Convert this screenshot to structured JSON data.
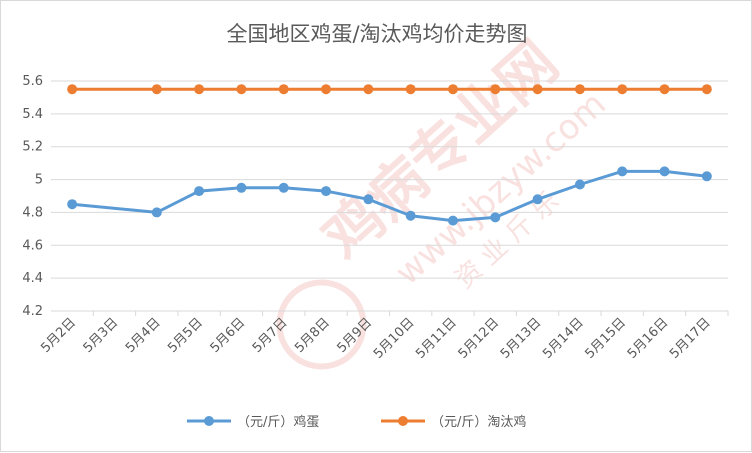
{
  "chart_data": {
    "type": "line",
    "title": "全国地区鸡蛋/淘汰鸡均价走势图",
    "categories": [
      "5月2日",
      "5月3日",
      "5月4日",
      "5月5日",
      "5月6日",
      "5月7日",
      "5月8日",
      "5月9日",
      "5月10日",
      "5月11日",
      "5月12日",
      "5月13日",
      "5月14日",
      "5月15日",
      "5月16日",
      "5月17日"
    ],
    "x_label_rotation": "-45",
    "ylim": [
      4.2,
      5.6
    ],
    "y_ticks": [
      "4.2",
      "4.4",
      "4.6",
      "4.8",
      "5",
      "5.2",
      "5.4",
      "5.6"
    ],
    "grid": true,
    "legend_position": "bottom",
    "series": [
      {
        "name": "（元/斤）鸡蛋",
        "color": "#5b9bd5",
        "values": [
          {
            "category": "5月2日",
            "value": 4.85
          },
          {
            "category": "5月4日",
            "value": 4.8
          },
          {
            "category": "5月5日",
            "value": 4.93
          },
          {
            "category": "5月6日",
            "value": 4.95
          },
          {
            "category": "5月7日",
            "value": 4.95
          },
          {
            "category": "5月8日",
            "value": 4.93
          },
          {
            "category": "5月9日",
            "value": 4.88
          },
          {
            "category": "5月10日",
            "value": 4.78
          },
          {
            "category": "5月11日",
            "value": 4.75
          },
          {
            "category": "5月12日",
            "value": 4.77
          },
          {
            "category": "5月13日",
            "value": 4.88
          },
          {
            "category": "5月14日",
            "value": 4.97
          },
          {
            "category": "5月15日",
            "value": 5.05
          },
          {
            "category": "5月16日",
            "value": 5.05
          },
          {
            "category": "5月17日",
            "value": 5.02
          }
        ]
      },
      {
        "name": "（元/斤）淘汰鸡",
        "color": "#ed7d31",
        "values": [
          {
            "category": "5月2日",
            "value": 5.55
          },
          {
            "category": "5月4日",
            "value": 5.55
          },
          {
            "category": "5月5日",
            "value": 5.55
          },
          {
            "category": "5月6日",
            "value": 5.55
          },
          {
            "category": "5月7日",
            "value": 5.55
          },
          {
            "category": "5月8日",
            "value": 5.55
          },
          {
            "category": "5月9日",
            "value": 5.55
          },
          {
            "category": "5月10日",
            "value": 5.55
          },
          {
            "category": "5月11日",
            "value": 5.55
          },
          {
            "category": "5月12日",
            "value": 5.55
          },
          {
            "category": "5月13日",
            "value": 5.55
          },
          {
            "category": "5月14日",
            "value": 5.55
          },
          {
            "category": "5月15日",
            "value": 5.55
          },
          {
            "category": "5月16日",
            "value": 5.55
          },
          {
            "category": "5月17日",
            "value": 5.55
          }
        ]
      }
    ]
  },
  "watermark": {
    "text_main": "鸡病专业网",
    "text_url": "www.jbzyw.com",
    "text_small": "资 业 斤 乐"
  },
  "colors": {
    "gridline": "#d9d9d9",
    "axis_text": "#595959",
    "watermark": "#f4c9c6"
  }
}
